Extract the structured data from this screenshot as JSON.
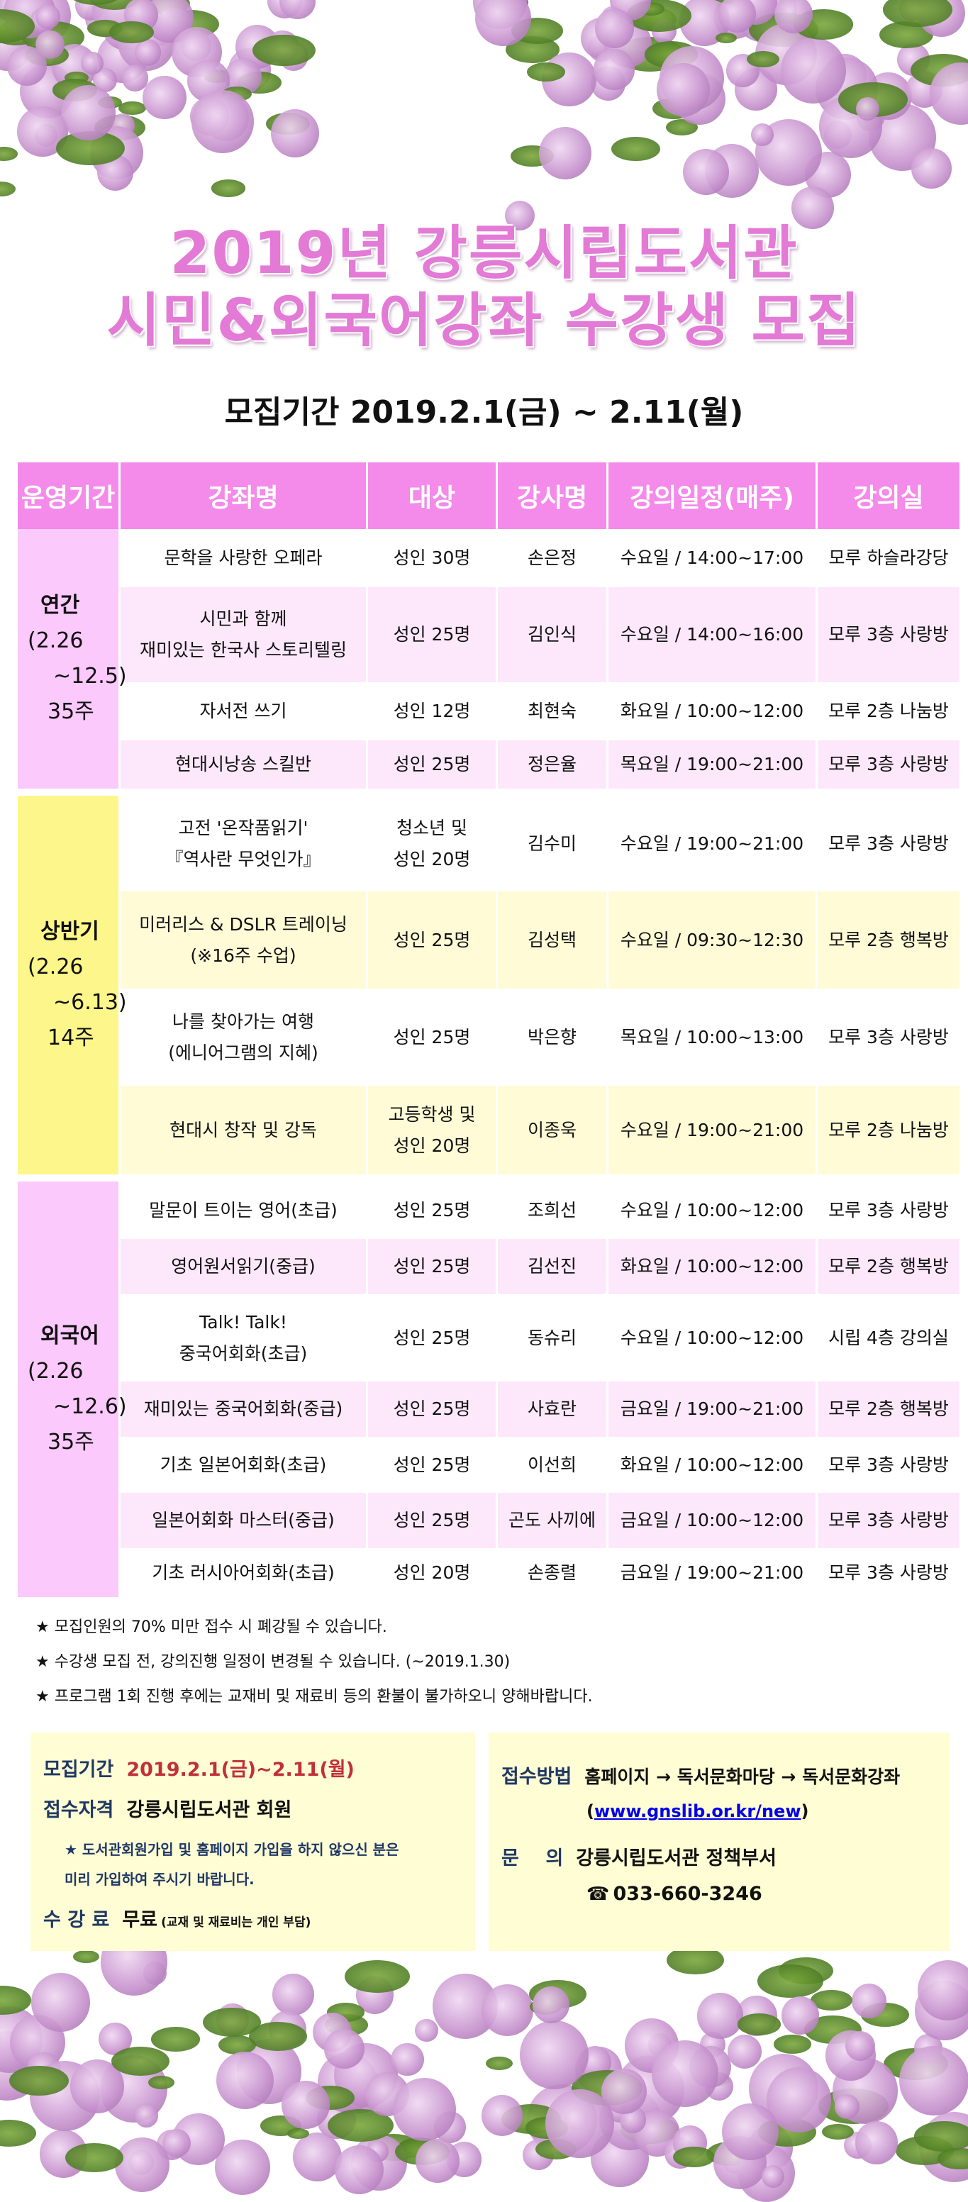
{
  "title_line1": "2019년 강릉시립도서관",
  "title_line2": "시민&외국어강좌 수강생 모집",
  "subtitle": "모집기간 2019.2.1(금) ~ 2.11(월)",
  "colors": {
    "header": "#f48ae9",
    "pink_period": "#fbc9fb",
    "yellow_period": "#fdf68a",
    "pink_row": "#fde8fb",
    "yellow_row": "#fefbd6",
    "title": "#e37ad6"
  },
  "table": {
    "headers": [
      "운영기간",
      "강좌명",
      "대상",
      "강사명",
      "강의일정(매주)",
      "강의실"
    ],
    "sections": [
      {
        "period": [
          "연간",
          "(2.26",
          "~12.5)",
          "35주"
        ],
        "theme": "pink",
        "rows": [
          [
            "문학을 사랑한 오페라",
            "성인 30명",
            "손은정",
            "수요일 / 14:00~17:00",
            "모루 하슬라강당"
          ],
          [
            "시민과 함께\n재미있는 한국사 스토리텔링",
            "성인 25명",
            "김인식",
            "수요일 / 14:00~16:00",
            "모루 3층 사랑방"
          ],
          [
            "자서전 쓰기",
            "성인 12명",
            "최현숙",
            "화요일 / 10:00~12:00",
            "모루 2층 나눔방"
          ],
          [
            "현대시낭송 스킬반",
            "성인 25명",
            "정은율",
            "목요일 / 19:00~21:00",
            "모루 3층 사랑방"
          ]
        ]
      },
      {
        "period": [
          "상반기",
          "(2.26",
          "~6.13)",
          "14주"
        ],
        "theme": "yellow",
        "rows": [
          [
            "고전 '온작품읽기'\n『역사란 무엇인가』",
            "청소년 및\n성인 20명",
            "김수미",
            "수요일 / 19:00~21:00",
            "모루 3층 사랑방"
          ],
          [
            "미러리스 & DSLR 트레이닝\n(※16주 수업)",
            "성인 25명",
            "김성택",
            "수요일 / 09:30~12:30",
            "모루 2층 행복방"
          ],
          [
            "나를 찾아가는 여행\n(에니어그램의 지혜)",
            "성인 25명",
            "박은향",
            "목요일 / 10:00~13:00",
            "모루 3층 사랑방"
          ],
          [
            "현대시 창작 및 강독",
            "고등학생 및\n성인 20명",
            "이종욱",
            "수요일 / 19:00~21:00",
            "모루 2층 나눔방"
          ]
        ]
      },
      {
        "period": [
          "외국어",
          "(2.26",
          "~12.6)",
          "35주"
        ],
        "theme": "pink",
        "rows": [
          [
            "말문이 트이는 영어(초급)",
            "성인 25명",
            "조희선",
            "수요일 / 10:00~12:00",
            "모루 3층 사랑방"
          ],
          [
            "영어원서읽기(중급)",
            "성인 25명",
            "김선진",
            "화요일 / 10:00~12:00",
            "모루 2층 행복방"
          ],
          [
            "Talk! Talk!\n중국어회화(초급)",
            "성인 25명",
            "동슈리",
            "수요일 / 10:00~12:00",
            "시립 4층 강의실"
          ],
          [
            "재미있는 중국어회화(중급)",
            "성인 25명",
            "사효란",
            "금요일 / 19:00~21:00",
            "모루 2층 행복방"
          ],
          [
            "기초 일본어회화(초급)",
            "성인 25명",
            "이선희",
            "화요일 / 10:00~12:00",
            "모루 3층 사랑방"
          ],
          [
            "일본어회화 마스터(중급)",
            "성인 25명",
            "곤도 사끼에",
            "금요일 / 10:00~12:00",
            "모루 3층 사랑방"
          ],
          [
            "기초 러시아어회화(초급)",
            "성인 20명",
            "손종렬",
            "금요일 / 19:00~21:00",
            "모루 3층 사랑방"
          ]
        ]
      }
    ]
  },
  "notes": [
    "모집인원의 70% 미만 접수 시 폐강될 수 있습니다.",
    "수강생 모집 전, 강의진행 일정이 변경될 수 있습니다. (~2019.1.30)",
    "프로그램 1회 진행 후에는 교재비 및 재료비 등의 환불이 불가하오니 양해바랍니다."
  ],
  "info_left": {
    "period_label": "모집기간",
    "period_value": "2019.2.1(금)~2.11(월)",
    "qual_label": "접수자격",
    "qual_value": "강릉시립도서관 회원",
    "qual_note1": "도서관회원가입 및 홈페이지 가입을 하지 않으신 분은",
    "qual_note2": "미리 가입하여 주시기 바랍니다.",
    "fee_label": "수 강 료",
    "fee_value": "무료",
    "fee_note": "(교재 및 재료비는 개인 부담)"
  },
  "info_right": {
    "method_label": "접수방법",
    "method_value": "홈페이지 → 독서문화마당 → 독서문화강좌",
    "url": "www.gnslib.or.kr/new",
    "contact_label": "문    의",
    "contact_value": "강릉시립도서관 정책부서",
    "phone": "033-660-3246"
  }
}
